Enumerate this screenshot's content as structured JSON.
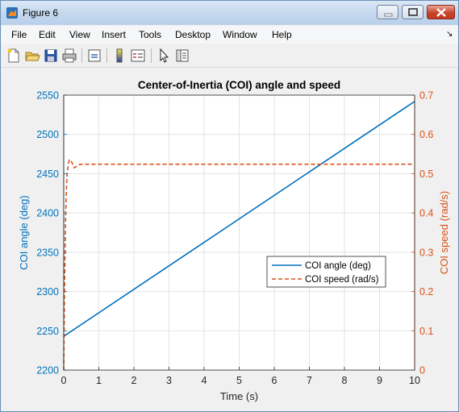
{
  "window": {
    "title": "Figure 6"
  },
  "menu": {
    "items": [
      "File",
      "Edit",
      "View",
      "Insert",
      "Tools",
      "Desktop",
      "Window",
      "Help"
    ]
  },
  "toolbar": {
    "icons": [
      "new-figure-icon",
      "open-icon",
      "save-icon",
      "print-icon",
      "link-icon",
      "colorbar-icon",
      "legend-icon",
      "pointer-icon",
      "property-editor-icon"
    ]
  },
  "colors": {
    "left_axis": "#0072bd",
    "right_axis": "#d95319"
  },
  "chart_data": {
    "type": "line",
    "title": "Center-of-Inertia (COI) angle and speed",
    "xlabel": "Time (s)",
    "ylabel_left": "COI angle (deg)",
    "ylabel_right": "COI speed (rad/s)",
    "xlim": [
      0,
      10
    ],
    "ylim_left": [
      2200,
      2550
    ],
    "ylim_right": [
      0,
      0.7
    ],
    "x_ticks": [
      "0",
      "1",
      "2",
      "3",
      "4",
      "5",
      "6",
      "7",
      "8",
      "9",
      "10"
    ],
    "y_ticks_left": [
      "2200",
      "2250",
      "2300",
      "2350",
      "2400",
      "2450",
      "2500",
      "2550"
    ],
    "y_ticks_right": [
      "0",
      "0.1",
      "0.2",
      "0.3",
      "0.4",
      "0.5",
      "0.6",
      "0.7"
    ],
    "grid": true,
    "legend_position": "center-right",
    "series": [
      {
        "name": "COI angle (deg)",
        "axis": "left",
        "style": "solid",
        "color": "#0072bd",
        "x": [
          0,
          10
        ],
        "y": [
          2243,
          2542
        ]
      },
      {
        "name": "COI speed (rad/s)",
        "axis": "right",
        "style": "dashed",
        "color": "#d95319",
        "x": [
          0,
          0.02,
          0.05,
          0.08,
          0.1,
          0.13,
          0.16,
          0.2,
          0.25,
          0.3,
          0.35,
          0.4,
          0.5,
          0.7,
          1.0,
          3,
          5,
          7,
          10
        ],
        "y": [
          0,
          0.2,
          0.38,
          0.47,
          0.5,
          0.525,
          0.535,
          0.535,
          0.525,
          0.515,
          0.518,
          0.522,
          0.524,
          0.524,
          0.524,
          0.524,
          0.524,
          0.524,
          0.524
        ]
      }
    ]
  }
}
